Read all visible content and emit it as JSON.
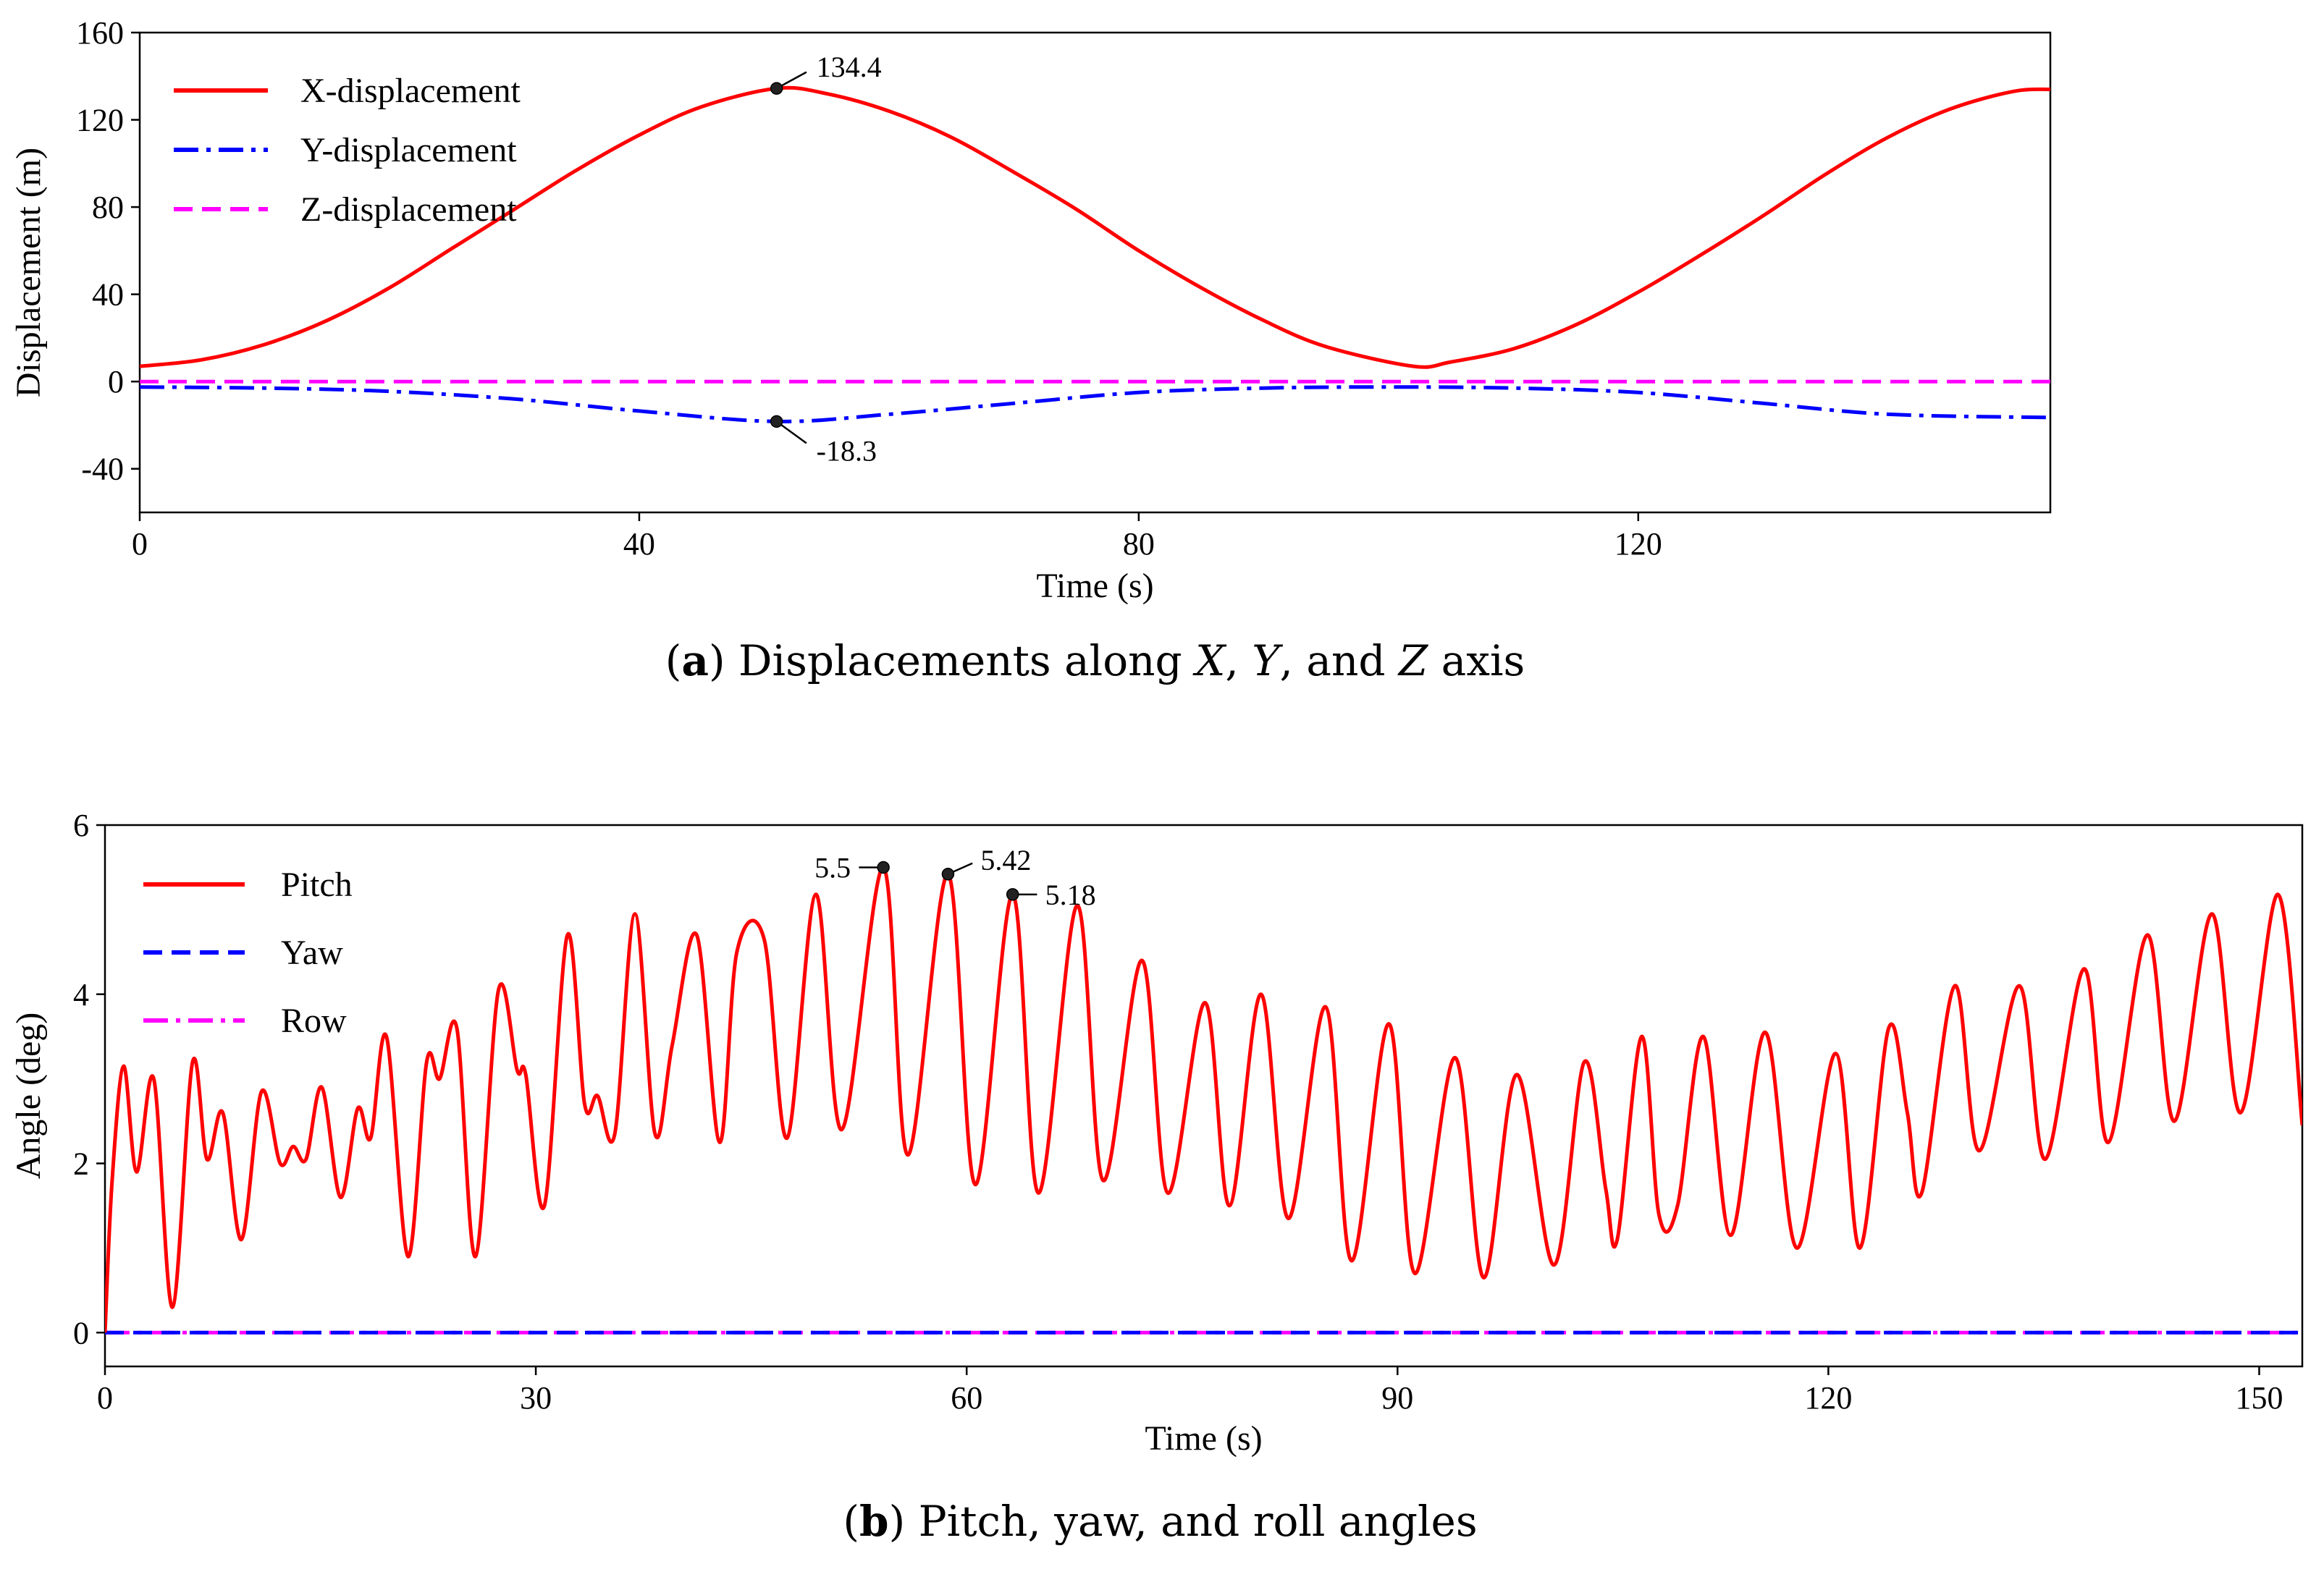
{
  "chart_data": [
    {
      "type": "line",
      "caption": {
        "label": "a",
        "text": "Displacements along X, Y, and Z axis"
      },
      "xlabel": "Time (s)",
      "ylabel": "Displacement (m)",
      "xlim": [
        0,
        153
      ],
      "ylim": [
        -60,
        160
      ],
      "xticks": [
        0,
        40,
        80,
        120
      ],
      "yticks": [
        -40,
        0,
        40,
        80,
        120,
        160
      ],
      "grid": false,
      "legend_position": "top-left",
      "series": [
        {
          "name": "X-displacement",
          "color": "#ff0000",
          "dash": "solid",
          "x": [
            0,
            5,
            10,
            15,
            20,
            25,
            30,
            35,
            40,
            45,
            51,
            55,
            60,
            65,
            70,
            75,
            80,
            85,
            90,
            95,
            102,
            105,
            110,
            115,
            120,
            125,
            130,
            135,
            140,
            145,
            150,
            153
          ],
          "y": [
            7,
            10,
            17,
            28,
            43,
            61,
            79,
            97,
            113,
            126,
            134.4,
            132,
            124,
            112,
            96,
            79,
            60,
            43,
            28,
            16,
            7,
            9,
            15,
            26,
            41,
            58,
            76,
            95,
            112,
            125,
            133,
            134
          ]
        },
        {
          "name": "Y-displacement",
          "color": "#0000ff",
          "dash": "dashdot",
          "x": [
            0,
            10,
            20,
            30,
            40,
            51,
            60,
            70,
            80,
            90,
            100,
            110,
            120,
            130,
            140,
            153
          ],
          "y": [
            -2.5,
            -3,
            -4.5,
            -8,
            -13.5,
            -18.3,
            -15,
            -10,
            -5,
            -3,
            -2.5,
            -3,
            -5,
            -10,
            -15,
            -16.5
          ]
        },
        {
          "name": "Z-displacement",
          "color": "#ff00ff",
          "dash": "dashed",
          "x": [
            0,
            153
          ],
          "y": [
            0,
            0
          ]
        }
      ],
      "annotations": [
        {
          "text": "134.4",
          "x": 51,
          "y": 134.4,
          "position": "upper-right"
        },
        {
          "text": "-18.3",
          "x": 51,
          "y": -18.3,
          "position": "lower-right"
        }
      ]
    },
    {
      "type": "line",
      "caption": {
        "label": "b",
        "text": "Pitch, yaw, and roll angles"
      },
      "xlabel": "Time (s)",
      "ylabel": "Angle (deg)",
      "xlim": [
        0,
        153
      ],
      "ylim": [
        -0.4,
        6
      ],
      "xticks": [
        0,
        30,
        60,
        90,
        120,
        150
      ],
      "yticks": [
        0,
        2,
        4,
        6
      ],
      "grid": false,
      "legend_position": "top-left",
      "series": [
        {
          "name": "Pitch",
          "color": "#ff0000",
          "dash": "solid",
          "x": [
            0,
            0.5,
            1.3,
            2.2,
            3.4,
            4.7,
            6.1,
            7.1,
            8.2,
            9.5,
            10.9,
            12.2,
            13.1,
            14,
            15.1,
            16.4,
            17.6,
            18.5,
            19.6,
            21.1,
            22.4,
            23.3,
            24.5,
            25.8,
            27.4,
            28.7,
            29.3,
            30.6,
            32.2,
            33.4,
            34.3,
            35.5,
            36.9,
            38.3,
            39.5,
            41.2,
            42.8,
            44,
            45.9,
            47.5,
            49.5,
            51.3,
            54.2,
            55.9,
            58.7,
            60.6,
            63.2,
            65,
            67.7,
            69.5,
            72.2,
            74,
            76.6,
            78.3,
            80.5,
            82.4,
            85,
            86.8,
            89.4,
            91.2,
            94,
            96,
            98.3,
            100.9,
            103,
            104.5,
            105.3,
            107,
            108.2,
            109.5,
            111.3,
            113.2,
            115.6,
            117.8,
            120.5,
            122.2,
            124.2,
            125.5,
            126.5,
            128.8,
            130.5,
            133.3,
            135.1,
            137.8,
            139.5,
            142.2,
            144.1,
            146.7,
            148.7,
            151.3,
            153
          ],
          "y": [
            0,
            1.8,
            3.15,
            1.9,
            3,
            0.3,
            3.2,
            2.05,
            2.6,
            1.1,
            2.85,
            2,
            2.2,
            2.05,
            2.9,
            1.6,
            2.65,
            2.3,
            3.5,
            0.9,
            3.2,
            3,
            3.6,
            0.9,
            4.05,
            3.1,
            3.05,
            1.5,
            4.7,
            2.7,
            2.8,
            2.35,
            4.95,
            2.35,
            3.4,
            4.7,
            2.25,
            4.5,
            4.65,
            2.3,
            5.18,
            2.4,
            5.5,
            2.1,
            5.42,
            1.75,
            5.18,
            1.65,
            5.05,
            1.8,
            4.4,
            1.65,
            3.9,
            1.5,
            4,
            1.35,
            3.85,
            0.85,
            3.65,
            0.7,
            3.25,
            0.65,
            3.05,
            0.8,
            3.2,
            1.7,
            1.1,
            3.5,
            1.4,
            1.5,
            3.5,
            1.15,
            3.55,
            1,
            3.3,
            1,
            3.6,
            2.6,
            1.65,
            4.1,
            2.15,
            4.1,
            2.05,
            4.3,
            2.25,
            4.7,
            2.5,
            4.95,
            2.6,
            5.18,
            2.45
          ]
        },
        {
          "name": "Yaw",
          "color": "#0000ff",
          "dash": "dashed",
          "x": [
            0,
            153
          ],
          "y": [
            0,
            0
          ]
        },
        {
          "name": "Row",
          "color": "#ff00ff",
          "dash": "dashdot",
          "x": [
            0,
            153
          ],
          "y": [
            0,
            0
          ]
        }
      ],
      "annotations": [
        {
          "text": "5.5",
          "x": 54.2,
          "y": 5.5,
          "position": "left"
        },
        {
          "text": "5.42",
          "x": 58.7,
          "y": 5.42,
          "position": "upper-right"
        },
        {
          "text": "5.18",
          "x": 63.2,
          "y": 5.18,
          "position": "right"
        }
      ]
    }
  ]
}
